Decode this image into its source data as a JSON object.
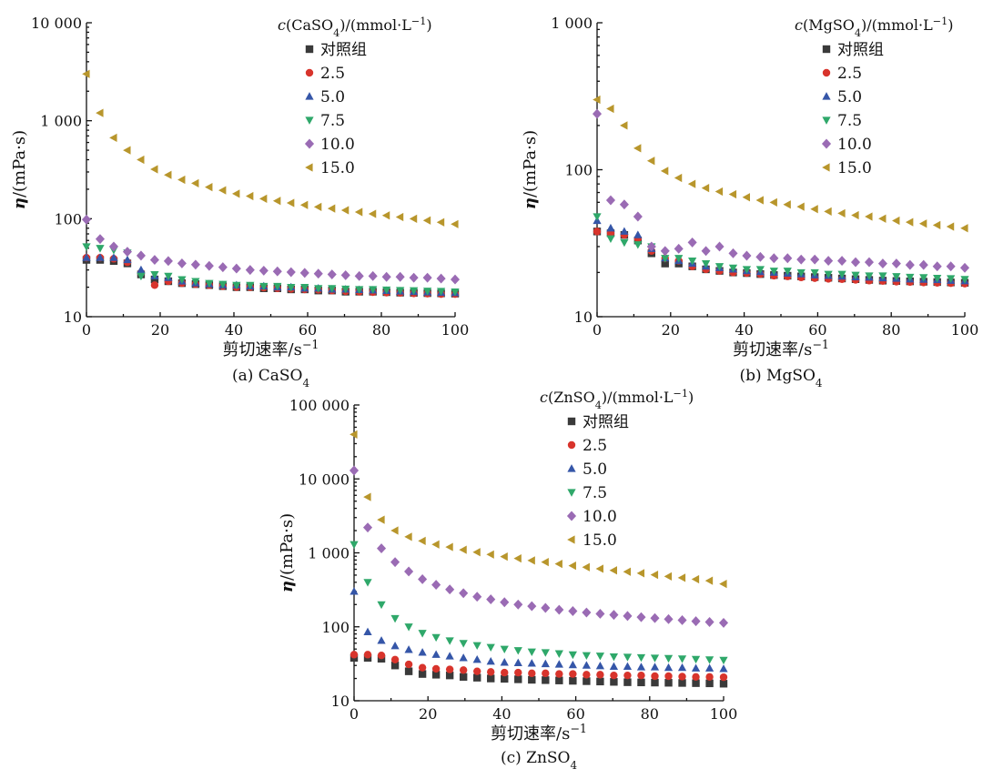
{
  "chart_data": [
    {
      "type": "scatter",
      "caption": "(a) CaSO4",
      "caption_text": "(a) CaSO",
      "caption_sub": "4",
      "xlabel": "剪切速率/s−1",
      "ylabel": "η/(mPa·s)",
      "x_scale": "linear",
      "y_scale": "log",
      "xlim": [
        0,
        100
      ],
      "ylim": [
        10,
        10000
      ],
      "x_ticks": [
        0,
        20,
        40,
        60,
        80,
        100
      ],
      "x_tick_labels": [
        "0",
        "20",
        "40",
        "60",
        "80",
        "100"
      ],
      "y_ticks": [
        10,
        100,
        1000,
        10000
      ],
      "y_tick_labels": [
        "10",
        "100",
        "1 000",
        "10 000"
      ],
      "legend_title": "c(CaSO4)/(mmol·L−1)",
      "legend_position": "top-right",
      "x": [
        0,
        3.7,
        7.4,
        11.1,
        14.8,
        18.5,
        22.2,
        25.9,
        29.6,
        33.3,
        37,
        40.7,
        44.4,
        48.1,
        51.8,
        55.5,
        59.2,
        62.9,
        66.6,
        70.3,
        74,
        77.7,
        81.4,
        85.1,
        88.8,
        92.5,
        96.2,
        100
      ],
      "series": [
        {
          "name": "对照组",
          "marker": "square",
          "color": "#3a3a3a",
          "values": [
            38,
            38,
            37,
            35,
            27,
            24,
            23,
            22,
            21.5,
            21,
            20.5,
            20,
            20,
            19.5,
            19.5,
            19,
            19,
            18.5,
            18.5,
            18,
            18,
            18,
            17.8,
            17.6,
            17.5,
            17.4,
            17.3,
            17.2
          ]
        },
        {
          "name": "2.5",
          "marker": "circle",
          "color": "#d8342c",
          "values": [
            40,
            40,
            39,
            36,
            28,
            21,
            23,
            22,
            21.5,
            21,
            20.5,
            20,
            20,
            19.8,
            19.5,
            19.2,
            19,
            18.8,
            18.5,
            18.2,
            18,
            17.8,
            17.6,
            17.5,
            17.3,
            17.2,
            17,
            17
          ]
        },
        {
          "name": "5.0",
          "marker": "triangle-up",
          "color": "#3556a8",
          "values": [
            40,
            40,
            40,
            38,
            30,
            26,
            25,
            23,
            22,
            21.5,
            21,
            21,
            20.5,
            20.5,
            20,
            20,
            19.5,
            19.5,
            19,
            19,
            18.8,
            18.6,
            18.4,
            18.2,
            18,
            17.8,
            17.6,
            17.5
          ]
        },
        {
          "name": "7.5",
          "marker": "triangle-down",
          "color": "#2fa86a",
          "values": [
            52,
            50,
            48,
            45,
            26,
            27,
            26,
            24,
            23,
            22,
            21.5,
            21,
            21,
            20.5,
            20.5,
            20,
            20,
            19.5,
            19.5,
            19.2,
            19,
            19,
            18.8,
            18.6,
            18.5,
            18.3,
            18.2,
            18
          ]
        },
        {
          "name": "10.0",
          "marker": "diamond",
          "color": "#9a6bb4",
          "values": [
            98,
            62,
            52,
            46,
            42,
            38,
            37,
            35,
            34,
            33,
            32,
            31,
            30,
            29.5,
            29,
            28.5,
            28,
            27.5,
            27,
            26.5,
            26,
            26,
            25.5,
            25.5,
            25,
            25,
            24.5,
            24
          ]
        },
        {
          "name": "15.0",
          "marker": "triangle-left",
          "color": "#b8962c",
          "values": [
            3000,
            1200,
            670,
            500,
            400,
            320,
            280,
            250,
            230,
            210,
            195,
            180,
            170,
            160,
            152,
            145,
            138,
            132,
            127,
            122,
            117,
            112,
            108,
            104,
            100,
            96,
            92,
            88
          ]
        }
      ]
    },
    {
      "type": "scatter",
      "caption": "(b) MgSO4",
      "caption_text": "(b) MgSO",
      "caption_sub": "4",
      "xlabel": "剪切速率/s−1",
      "ylabel": "η/(mPa·s)",
      "x_scale": "linear",
      "y_scale": "log",
      "xlim": [
        0,
        100
      ],
      "ylim": [
        10,
        1000
      ],
      "x_ticks": [
        0,
        20,
        40,
        60,
        80,
        100
      ],
      "x_tick_labels": [
        "0",
        "20",
        "40",
        "60",
        "80",
        "100"
      ],
      "y_ticks": [
        10,
        100,
        1000
      ],
      "y_tick_labels": [
        "10",
        "100",
        "1 000"
      ],
      "legend_title": "c(MgSO4)/(mmol·L−1)",
      "legend_position": "top-right",
      "x": [
        0,
        3.7,
        7.4,
        11.1,
        14.8,
        18.5,
        22.2,
        25.9,
        29.6,
        33.3,
        37,
        40.7,
        44.4,
        48.1,
        51.8,
        55.5,
        59.2,
        62.9,
        66.6,
        70.3,
        74,
        77.7,
        81.4,
        85.1,
        88.8,
        92.5,
        96.2,
        100
      ],
      "series": [
        {
          "name": "对照组",
          "marker": "square",
          "color": "#3a3a3a",
          "values": [
            38,
            37,
            36,
            33,
            27,
            23,
            23,
            22,
            21,
            20.5,
            20,
            19.8,
            19.5,
            19.2,
            19,
            18.8,
            18.6,
            18.4,
            18.2,
            18,
            17.8,
            17.6,
            17.5,
            17.4,
            17.3,
            17.2,
            17.1,
            17
          ]
        },
        {
          "name": "2.5",
          "marker": "circle",
          "color": "#d8342c",
          "values": [
            38,
            37,
            36,
            34,
            28,
            25,
            24,
            22,
            21,
            20.5,
            20,
            19.8,
            19.5,
            19,
            18.8,
            18.5,
            18.3,
            18.1,
            18,
            17.8,
            17.6,
            17.5,
            17.3,
            17.2,
            17.1,
            17,
            16.9,
            16.8
          ]
        },
        {
          "name": "5.0",
          "marker": "triangle-up",
          "color": "#3556a8",
          "values": [
            45,
            40,
            38,
            36,
            29,
            25,
            24,
            23,
            22,
            21.5,
            21,
            20.5,
            20.2,
            20,
            19.7,
            19.5,
            19.2,
            19,
            18.8,
            18.6,
            18.5,
            18.3,
            18.2,
            18,
            17.9,
            17.8,
            17.6,
            17.5
          ]
        },
        {
          "name": "7.5",
          "marker": "triangle-down",
          "color": "#2fa86a",
          "values": [
            48,
            34,
            32,
            31,
            30,
            25,
            25,
            24,
            23,
            22,
            21.5,
            21,
            21,
            20.5,
            20.5,
            20,
            20,
            19.5,
            19.5,
            19.2,
            19,
            19,
            18.8,
            18.6,
            18.5,
            18.3,
            18.2,
            18
          ]
        },
        {
          "name": "10.0",
          "marker": "diamond",
          "color": "#9a6bb4",
          "values": [
            240,
            62,
            58,
            48,
            30,
            28,
            29,
            32,
            28,
            30,
            27,
            26,
            25.5,
            25,
            25,
            24.5,
            24.5,
            24,
            24,
            23.5,
            23.5,
            23,
            23,
            22.5,
            22.5,
            22,
            22,
            21.5
          ]
        },
        {
          "name": "15.0",
          "marker": "triangle-left",
          "color": "#b8962c",
          "values": [
            300,
            260,
            200,
            140,
            115,
            98,
            88,
            80,
            75,
            71,
            68,
            65,
            62,
            60,
            58,
            56,
            54,
            52,
            50.5,
            49,
            48,
            46.5,
            45,
            44,
            43,
            42,
            41,
            40
          ]
        }
      ]
    },
    {
      "type": "scatter",
      "caption": "(c) ZnSO4",
      "caption_text": "(c) ZnSO",
      "caption_sub": "4",
      "xlabel": "剪切速率/s−1",
      "ylabel": "η/(mPa·s)",
      "x_scale": "linear",
      "y_scale": "log",
      "xlim": [
        0,
        100
      ],
      "ylim": [
        10,
        100000
      ],
      "x_ticks": [
        0,
        20,
        40,
        60,
        80,
        100
      ],
      "x_tick_labels": [
        "0",
        "20",
        "40",
        "60",
        "80",
        "100"
      ],
      "y_ticks": [
        10,
        100,
        1000,
        10000,
        100000
      ],
      "y_tick_labels": [
        "10",
        "100",
        "1 000",
        "10 000",
        "100 000"
      ],
      "legend_title": "c(ZnSO4)/(mmol·L−1)",
      "legend_position": "top-right",
      "x": [
        0,
        3.7,
        7.4,
        11.1,
        14.8,
        18.5,
        22.2,
        25.9,
        29.6,
        33.3,
        37,
        40.7,
        44.4,
        48.1,
        51.8,
        55.5,
        59.2,
        62.9,
        66.6,
        70.3,
        74,
        77.7,
        81.4,
        85.1,
        88.8,
        92.5,
        96.2,
        100
      ],
      "series": [
        {
          "name": "对照组",
          "marker": "square",
          "color": "#3a3a3a",
          "values": [
            38,
            38,
            37,
            30,
            25,
            23,
            22.5,
            22,
            21,
            20.5,
            20,
            19.8,
            19.5,
            19.2,
            19,
            18.8,
            18.6,
            18.4,
            18.2,
            18,
            17.8,
            17.7,
            17.6,
            17.5,
            17.4,
            17.3,
            17.2,
            17
          ]
        },
        {
          "name": "2.5",
          "marker": "circle",
          "color": "#d8342c",
          "values": [
            42,
            42,
            41,
            36,
            31,
            28,
            27,
            26.5,
            26,
            25,
            24.5,
            24,
            24,
            23.5,
            23.5,
            23,
            23,
            22.5,
            22.5,
            22,
            22,
            22,
            21.5,
            21.5,
            21.2,
            21,
            21,
            20.8
          ]
        },
        {
          "name": "5.0",
          "marker": "triangle-up",
          "color": "#3556a8",
          "values": [
            300,
            85,
            65,
            55,
            49,
            45,
            42,
            40,
            38,
            36,
            34,
            33,
            32.5,
            32,
            31.5,
            31,
            30.5,
            30,
            29.5,
            29,
            29,
            28.5,
            28.5,
            28,
            28,
            27.5,
            27.5,
            27
          ]
        },
        {
          "name": "7.5",
          "marker": "triangle-down",
          "color": "#2fa86a",
          "values": [
            1300,
            400,
            200,
            130,
            100,
            82,
            72,
            65,
            60,
            56,
            53,
            50,
            48,
            46,
            45,
            43.5,
            42,
            41,
            40.5,
            39.5,
            39,
            38.5,
            38,
            37.5,
            37,
            36.5,
            36,
            35.5
          ]
        },
        {
          "name": "10.0",
          "marker": "diamond",
          "color": "#9a6bb4",
          "values": [
            13000,
            2200,
            1150,
            750,
            560,
            440,
            370,
            320,
            285,
            255,
            235,
            215,
            200,
            190,
            180,
            170,
            163,
            156,
            150,
            145,
            140,
            135,
            131,
            127,
            123,
            119,
            116,
            113
          ]
        },
        {
          "name": "15.0",
          "marker": "triangle-left",
          "color": "#b8962c",
          "values": [
            40000,
            5700,
            2800,
            2000,
            1650,
            1450,
            1300,
            1200,
            1100,
            1020,
            950,
            890,
            840,
            790,
            750,
            710,
            670,
            640,
            610,
            580,
            555,
            530,
            505,
            480,
            460,
            440,
            420,
            380
          ]
        }
      ]
    }
  ]
}
